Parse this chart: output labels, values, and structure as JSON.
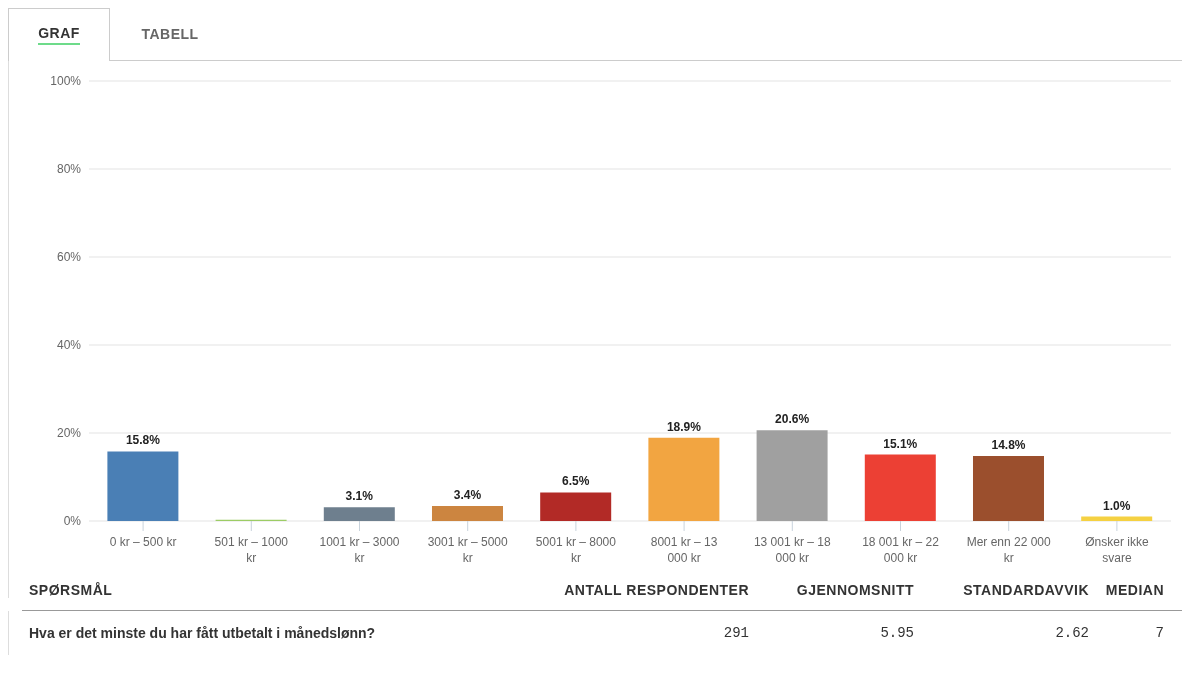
{
  "chart_data": {
    "type": "bar",
    "categories": [
      "0 kr – 500 kr",
      "501 kr – 1000 kr",
      "1001 kr – 3000 kr",
      "3001 kr – 5000 kr",
      "5001 kr – 8000 kr",
      "8001 kr – 13 000 kr",
      "13 001 kr – 18 000 kr",
      "18 001 kr – 22 000 kr",
      "Mer enn 22 000 kr",
      "Ønsker ikke svare"
    ],
    "values": [
      15.8,
      0.3,
      3.1,
      3.4,
      6.5,
      18.9,
      20.6,
      15.1,
      14.8,
      1.0
    ],
    "value_labels": [
      "15.8%",
      null,
      "3.1%",
      "3.4%",
      "6.5%",
      "18.9%",
      "20.6%",
      "15.1%",
      "14.8%",
      "1.0%"
    ],
    "colors": [
      "#4a7fb5",
      "#9ccc65",
      "#6e7f8e",
      "#cc8540",
      "#b22a26",
      "#f2a541",
      "#a0a0a0",
      "#ec4034",
      "#9b4f2d",
      "#f5d142"
    ],
    "ylim": [
      0,
      100
    ],
    "yticks": [
      {
        "value": 0,
        "label": "0%"
      },
      {
        "value": 20,
        "label": "20%"
      },
      {
        "value": 40,
        "label": "40%"
      },
      {
        "value": 60,
        "label": "60%"
      },
      {
        "value": 80,
        "label": "80%"
      },
      {
        "value": 100,
        "label": "100%"
      }
    ],
    "grid": "y",
    "annotations": [
      "GRAF",
      "TABELL",
      "SPØRSMÅL",
      "ANTALL RESPONDENTER",
      "GJENNOMSNITT",
      "STANDARDAVVIK",
      "MEDIAN",
      "Hva er det minste du har fått utbetalt i månedslønn?",
      "291",
      "5.95",
      "2.62",
      "7"
    ]
  }
}
